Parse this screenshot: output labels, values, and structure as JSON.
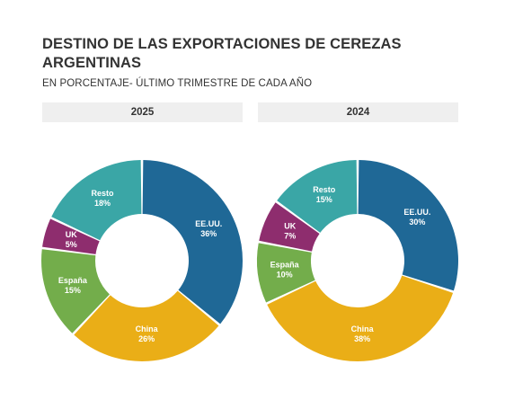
{
  "title": "DESTINO DE LAS EXPORTACIONES DE CEREZAS ARGENTINAS",
  "subtitle": "EN PORCENTAJE- ÚLTIMO TRIMESTRE DE CADA AÑO",
  "colors": {
    "EE.UU.": "#1f6896",
    "China": "#eaae17",
    "España": "#73ad4b",
    "UK": "#8e2d6e",
    "Resto": "#3aa6a6"
  },
  "chart_data": [
    {
      "type": "pie",
      "title": "2025",
      "categories": [
        "EE.UU.",
        "China",
        "España",
        "UK",
        "Resto"
      ],
      "values": [
        36,
        26,
        15,
        5,
        18
      ],
      "unit": "%"
    },
    {
      "type": "pie",
      "title": "2024",
      "categories": [
        "EE.UU.",
        "China",
        "España",
        "UK",
        "Resto"
      ],
      "values": [
        30,
        38,
        10,
        7,
        15
      ],
      "unit": "%"
    }
  ]
}
